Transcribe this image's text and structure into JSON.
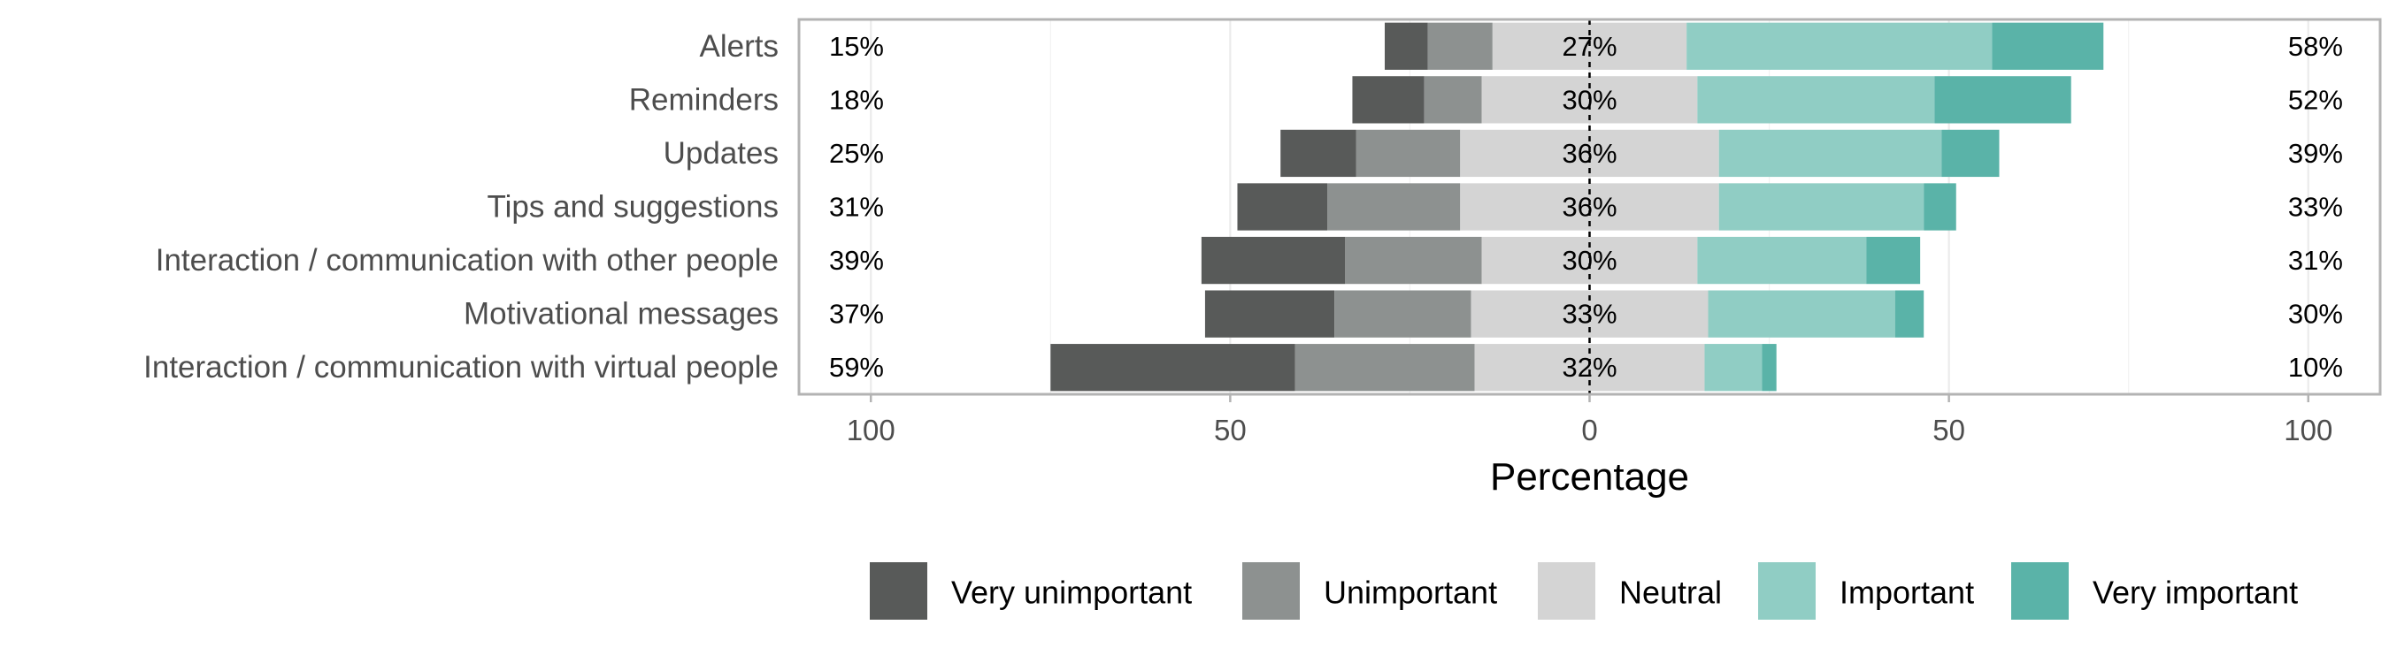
{
  "chart_data": {
    "type": "bar",
    "subtype": "diverging-stacked-likert",
    "xlabel": "Percentage",
    "ylabel": "",
    "xlim": [
      -110,
      110
    ],
    "x_ticks": [
      {
        "value": -100,
        "label": "100"
      },
      {
        "value": -50,
        "label": "50"
      },
      {
        "value": 0,
        "label": "0"
      },
      {
        "value": 50,
        "label": "50"
      },
      {
        "value": 100,
        "label": "100"
      }
    ],
    "grid": true,
    "legend_position": "bottom",
    "levels": [
      "Very unimportant",
      "Unimportant",
      "Neutral",
      "Important",
      "Very important"
    ],
    "colors": [
      "#585a59",
      "#8d9190",
      "#d4d4d4",
      "#90cdc4",
      "#5ab3a8"
    ],
    "categories": [
      "Alerts",
      "Reminders",
      "Updates",
      "Tips and suggestions",
      "Interaction / communication with other people",
      "Motivational messages",
      "Interaction / communication with virtual people"
    ],
    "series": [
      {
        "name": "Very unimportant",
        "values": [
          6,
          10,
          10.5,
          12.5,
          20,
          18,
          34
        ]
      },
      {
        "name": "Unimportant",
        "values": [
          9,
          8,
          14.5,
          18.5,
          19,
          19,
          25
        ]
      },
      {
        "name": "Neutral",
        "values": [
          27,
          30,
          36,
          36,
          30,
          33,
          32
        ]
      },
      {
        "name": "Important",
        "values": [
          42.5,
          33,
          31,
          28.5,
          23.5,
          26,
          8
        ]
      },
      {
        "name": "Very important",
        "values": [
          15.5,
          19,
          8,
          4.5,
          7.5,
          4,
          2
        ]
      }
    ],
    "left_labels": [
      "15%",
      "18%",
      "25%",
      "31%",
      "39%",
      "37%",
      "59%"
    ],
    "center_labels": [
      "27%",
      "30%",
      "36%",
      "36%",
      "30%",
      "33%",
      "32%"
    ],
    "right_labels": [
      "58%",
      "52%",
      "39%",
      "33%",
      "31%",
      "30%",
      "10%"
    ]
  }
}
